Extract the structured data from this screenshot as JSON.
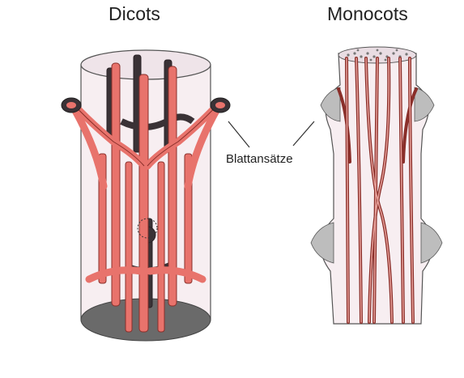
{
  "labels": {
    "left_title": "Dicots",
    "right_title": "Monocots",
    "callout": "Blattansätze"
  },
  "colors": {
    "bundle_fill": "#e8736c",
    "bundle_stroke": "#8a2f2a",
    "stem_fill": "#f7eef1",
    "dark": "#3a3236",
    "base": "#6a6a6a"
  }
}
